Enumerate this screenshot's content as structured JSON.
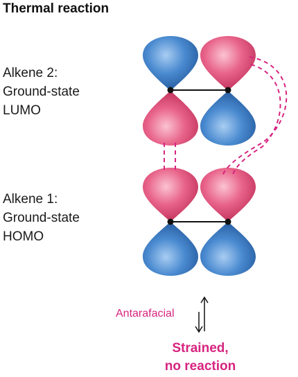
{
  "title": "Thermal reaction",
  "alkene2": {
    "lines": [
      "Alkene 2:",
      "Ground-state",
      "LUMO"
    ]
  },
  "alkene1": {
    "lines": [
      "Alkene 1:",
      "Ground-state",
      "HOMO"
    ]
  },
  "annotation": "Antarafacial",
  "outcome": {
    "lines": [
      "Strained,",
      "no reaction"
    ]
  },
  "colors": {
    "lobe_pink": "#e3557f",
    "lobe_blue": "#3d7fc6",
    "accent": "#d6247f",
    "bond": "#111111"
  }
}
